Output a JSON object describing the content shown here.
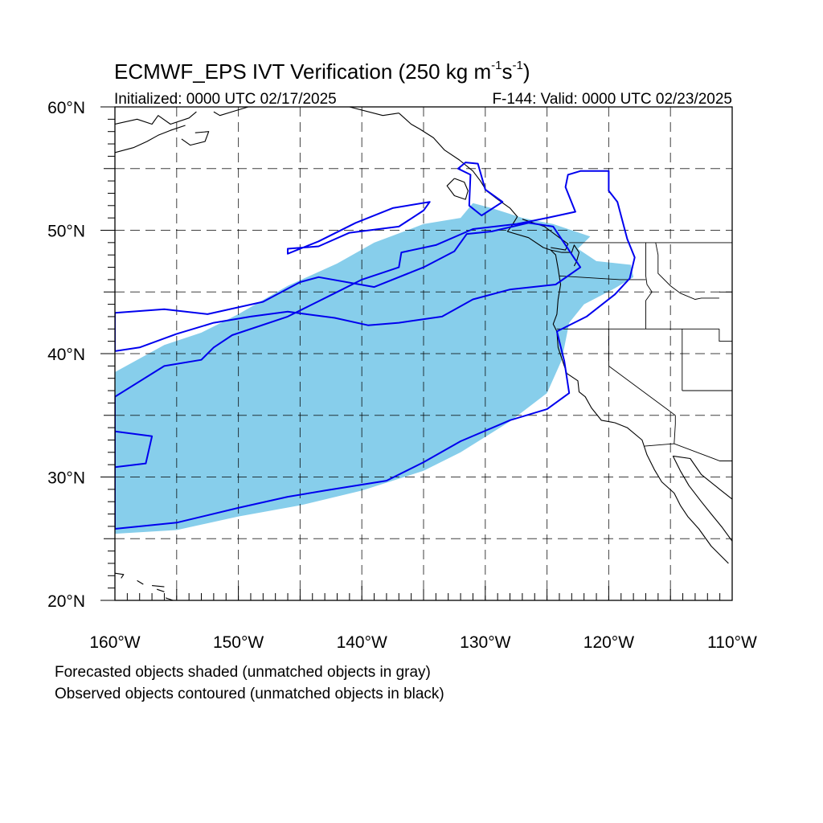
{
  "title": {
    "main": "ECMWF_EPS IVT Verification (250 kg m",
    "sup1": "-1",
    "mid": "s",
    "sup2": "-1",
    "end": ")"
  },
  "initialized": "Initialized: 0000 UTC 02/17/2025",
  "valid": "F-144: Valid: 0000 UTC 02/23/2025",
  "map": {
    "lon_range": [
      -160,
      -110
    ],
    "lat_range": [
      20,
      60
    ],
    "grid_spacing_deg": 5,
    "x_tick_labels": [
      "160°W",
      "150°W",
      "140°W",
      "130°W",
      "120°W",
      "110°W"
    ],
    "y_tick_labels": [
      "20°N",
      "30°N",
      "40°N",
      "50°N",
      "60°N"
    ],
    "colors": {
      "forecast_fill": "#87ceeb",
      "observed_contour": "#0000ee",
      "coastline": "#000000",
      "grid": "#000000"
    },
    "forecast_object": [
      [
        -160,
        25.4
      ],
      [
        -155,
        25.7
      ],
      [
        -150,
        26.8
      ],
      [
        -145,
        27.7
      ],
      [
        -140,
        28.9
      ],
      [
        -135,
        30.5
      ],
      [
        -132,
        32
      ],
      [
        -128,
        34.5
      ],
      [
        -125,
        36.8
      ],
      [
        -123.8,
        39.5
      ],
      [
        -123.2,
        42.5
      ],
      [
        -122,
        44
      ],
      [
        -119.5,
        45.3
      ],
      [
        -118,
        46.2
      ],
      [
        -118.2,
        47.2
      ],
      [
        -121,
        47.5
      ],
      [
        -122.5,
        48.5
      ],
      [
        -121.5,
        49.5
      ],
      [
        -124.5,
        50.5
      ],
      [
        -127,
        51
      ],
      [
        -129.5,
        51.8
      ],
      [
        -131,
        52.2
      ],
      [
        -132,
        51
      ],
      [
        -135,
        50.5
      ],
      [
        -139,
        49
      ],
      [
        -142,
        47.3
      ],
      [
        -146,
        45.5
      ],
      [
        -150,
        43.2
      ],
      [
        -153,
        41.7
      ],
      [
        -156,
        40.7
      ],
      [
        -160,
        38.5
      ]
    ],
    "observed_objects": [
      [
        [
          -160,
          25.8
        ],
        [
          -155,
          26.3
        ],
        [
          -150,
          27.5
        ],
        [
          -146,
          28.4
        ],
        [
          -143,
          28.9
        ],
        [
          -138,
          29.7
        ],
        [
          -135,
          31.2
        ],
        [
          -132,
          32.9
        ],
        [
          -128,
          34.6
        ],
        [
          -125,
          35.5
        ],
        [
          -123.2,
          36.8
        ],
        [
          -123.6,
          39.4
        ],
        [
          -124.2,
          41.8
        ],
        [
          -121.8,
          43
        ],
        [
          -119.5,
          44.8
        ],
        [
          -118.3,
          46.1
        ],
        [
          -117.9,
          47.8
        ],
        [
          -118.5,
          49.3
        ],
        [
          -119.3,
          52.3
        ],
        [
          -120,
          53.2
        ],
        [
          -120,
          54.8
        ],
        [
          -122.3,
          54.8
        ],
        [
          -123.3,
          54.5
        ],
        [
          -123.5,
          53.5
        ],
        [
          -122.7,
          51.5
        ],
        [
          -125,
          51
        ],
        [
          -127.5,
          50.5
        ],
        [
          -131,
          50.1
        ],
        [
          -134,
          48.8
        ],
        [
          -136.8,
          48.2
        ],
        [
          -137,
          47
        ],
        [
          -140,
          46
        ],
        [
          -142,
          45
        ],
        [
          -146,
          43
        ],
        [
          -150.5,
          41.5
        ],
        [
          -152,
          40.5
        ],
        [
          -153,
          39.5
        ],
        [
          -156,
          39
        ],
        [
          -160,
          36.5
        ]
      ],
      [
        [
          -160,
          43.3
        ],
        [
          -156,
          43.6
        ],
        [
          -152.5,
          43.2
        ],
        [
          -148,
          44.2
        ],
        [
          -145,
          45.8
        ],
        [
          -143.5,
          46.2
        ],
        [
          -139,
          45.4
        ],
        [
          -136,
          46.6
        ],
        [
          -135,
          47
        ],
        [
          -132.5,
          48.3
        ],
        [
          -131.5,
          49.7
        ],
        [
          -129.5,
          49.9
        ],
        [
          -126.5,
          50.6
        ],
        [
          -124.5,
          50.3
        ],
        [
          -122.3,
          47
        ],
        [
          -124.3,
          45.6
        ],
        [
          -128,
          45.2
        ],
        [
          -131,
          44.4
        ],
        [
          -133.5,
          43
        ],
        [
          -137,
          42.5
        ],
        [
          -139.5,
          42.3
        ],
        [
          -142.2,
          42.9
        ],
        [
          -146,
          43.4
        ],
        [
          -149,
          43
        ],
        [
          -152,
          42.5
        ],
        [
          -155,
          41.6
        ],
        [
          -158,
          40.5
        ],
        [
          -160,
          40.2
        ]
      ],
      [
        [
          -160,
          30.8
        ],
        [
          -157.5,
          31.1
        ],
        [
          -157,
          33.3
        ],
        [
          -160,
          33.7
        ]
      ],
      [
        [
          -146,
          48.5
        ],
        [
          -143.5,
          48.7
        ],
        [
          -141,
          49.8
        ],
        [
          -137,
          50.3
        ],
        [
          -135,
          51.6
        ],
        [
          -134.5,
          52.3
        ],
        [
          -137.5,
          51.8
        ],
        [
          -140.5,
          50.6
        ],
        [
          -143.5,
          49.1
        ],
        [
          -146,
          48.1
        ]
      ],
      [
        [
          -132.2,
          55
        ],
        [
          -131.6,
          55.5
        ],
        [
          -130.6,
          55.4
        ],
        [
          -130,
          53.3
        ],
        [
          -128.6,
          52.3
        ],
        [
          -130.3,
          51.2
        ],
        [
          -131.3,
          52
        ],
        [
          -131.2,
          54.5
        ]
      ]
    ],
    "coastlines": [
      [
        [
          -137,
          59.5
        ],
        [
          -136,
          58.6
        ],
        [
          -135.3,
          58.2
        ],
        [
          -134.2,
          57.5
        ],
        [
          -133.3,
          56.5
        ],
        [
          -132.1,
          55.7
        ],
        [
          -131,
          54.8
        ],
        [
          -130.4,
          54
        ],
        [
          -129.9,
          53.2
        ],
        [
          -129,
          52.5
        ],
        [
          -128,
          51.8
        ],
        [
          -127.4,
          51.1
        ],
        [
          -127.9,
          50.3
        ],
        [
          -128.2,
          49.9
        ],
        [
          -126.5,
          49.4
        ],
        [
          -125.3,
          48.6
        ],
        [
          -124.7,
          48.4
        ],
        [
          -124.3,
          48
        ],
        [
          -124.1,
          46.9
        ],
        [
          -123.9,
          45.6
        ],
        [
          -124.1,
          44.4
        ],
        [
          -124.2,
          43.2
        ],
        [
          -124.5,
          42.4
        ],
        [
          -124.2,
          41.8
        ],
        [
          -124.1,
          40.5
        ],
        [
          -123.8,
          39.6
        ],
        [
          -123.4,
          38.4
        ],
        [
          -122.5,
          37.8
        ],
        [
          -122.4,
          36.9
        ],
        [
          -121.9,
          36.5
        ],
        [
          -121.4,
          35.6
        ],
        [
          -120.6,
          34.6
        ],
        [
          -119.5,
          34.4
        ],
        [
          -118.5,
          34
        ],
        [
          -117.3,
          33
        ],
        [
          -116.9,
          31.8
        ],
        [
          -116.3,
          30.6
        ],
        [
          -115.7,
          29.6
        ],
        [
          -114.7,
          28.7
        ],
        [
          -114.2,
          27.7
        ],
        [
          -113.6,
          26.8
        ],
        [
          -112.7,
          25.8
        ],
        [
          -111.7,
          24.4
        ],
        [
          -110.3,
          23
        ]
      ],
      [
        [
          -114.8,
          31.7
        ],
        [
          -114.2,
          30.5
        ],
        [
          -113.5,
          29.3
        ],
        [
          -112.5,
          28
        ],
        [
          -111.7,
          27
        ],
        [
          -110.8,
          25.9
        ],
        [
          -110,
          24.8
        ]
      ],
      [
        [
          -110,
          28.2
        ],
        [
          -111,
          29
        ],
        [
          -112.5,
          30.2
        ],
        [
          -113.4,
          31.5
        ],
        [
          -114.8,
          31.7
        ]
      ],
      [
        [
          -160,
          58.6
        ],
        [
          -158.2,
          59
        ],
        [
          -157,
          58.6
        ],
        [
          -156.5,
          59.3
        ],
        [
          -155.5,
          58.6
        ],
        [
          -154,
          59.1
        ],
        [
          -153.4,
          59.6
        ]
      ],
      [
        [
          -160,
          56.3
        ],
        [
          -158.5,
          56.7
        ],
        [
          -157.4,
          57.2
        ],
        [
          -156.5,
          57.7
        ],
        [
          -155.5,
          58.1
        ],
        [
          -154.3,
          58.5
        ]
      ],
      [
        [
          -153.5,
          57.9
        ],
        [
          -152.4,
          58
        ],
        [
          -152.7,
          57.2
        ],
        [
          -153.9,
          56.9
        ],
        [
          -154.6,
          57.4
        ]
      ],
      [
        [
          -152,
          59.6
        ],
        [
          -151.5,
          59.3
        ],
        [
          -150.2,
          59.7
        ],
        [
          -149.2,
          60
        ]
      ],
      [
        [
          -141,
          60
        ],
        [
          -138.3,
          59.3
        ],
        [
          -137,
          59.5
        ]
      ],
      [
        [
          -132.5,
          54.2
        ],
        [
          -131.7,
          53.9
        ],
        [
          -131.4,
          53.2
        ],
        [
          -131.6,
          52.5
        ],
        [
          -132.5,
          52.8
        ],
        [
          -133.1,
          53.6
        ],
        [
          -132.5,
          54.2
        ]
      ],
      [
        [
          -124.7,
          48.4
        ],
        [
          -123.8,
          48.2
        ],
        [
          -123,
          48.2
        ],
        [
          -122.8,
          48.8
        ],
        [
          -122.4,
          48.2
        ],
        [
          -122.6,
          47.5
        ],
        [
          -122.8,
          47.1
        ]
      ],
      [
        [
          -124.7,
          48.6
        ],
        [
          -123.5,
          48.4
        ],
        [
          -123.3,
          48.9
        ],
        [
          -124,
          49.4
        ],
        [
          -125.2,
          50.3
        ],
        [
          -127,
          50.9
        ]
      ],
      [
        [
          -160,
          22.2
        ],
        [
          -159.3,
          22.1
        ],
        [
          -159.5,
          21.8
        ]
      ],
      [
        [
          -158.2,
          21.6
        ],
        [
          -157.7,
          21.3
        ]
      ],
      [
        [
          -157,
          21.2
        ],
        [
          -156,
          21.1
        ]
      ],
      [
        [
          -156.6,
          20.9
        ],
        [
          -156,
          20.7
        ]
      ],
      [
        [
          -155.9,
          20.2
        ],
        [
          -155,
          19.9
        ]
      ]
    ],
    "borders": [
      [
        [
          -123.2,
          49
        ],
        [
          -110,
          49
        ]
      ],
      [
        [
          -124.2,
          42
        ],
        [
          -117,
          42
        ],
        [
          -111.05,
          42
        ]
      ],
      [
        [
          -120,
          42
        ],
        [
          -120,
          39
        ],
        [
          -114.6,
          35
        ]
      ],
      [
        [
          -117,
          49
        ],
        [
          -117,
          46.3
        ],
        [
          -116.9,
          45.6
        ],
        [
          -116.5,
          45
        ],
        [
          -117,
          44.3
        ],
        [
          -117,
          42
        ]
      ],
      [
        [
          -124,
          46.3
        ],
        [
          -119.1,
          46
        ],
        [
          -117,
          46
        ]
      ],
      [
        [
          -114.6,
          35
        ],
        [
          -114.6,
          34.3
        ],
        [
          -114.7,
          32.7
        ]
      ],
      [
        [
          -117.1,
          32.5
        ],
        [
          -114.7,
          32.7
        ],
        [
          -111,
          31.3
        ],
        [
          -110,
          31.3
        ]
      ],
      [
        [
          -116.2,
          49
        ],
        [
          -116,
          48
        ],
        [
          -116,
          46.5
        ],
        [
          -115,
          45.5
        ],
        [
          -114.2,
          44.9
        ],
        [
          -113,
          44.4
        ],
        [
          -112.5,
          44.5
        ],
        [
          -111.05,
          44.5
        ]
      ],
      [
        [
          -111.05,
          45
        ],
        [
          -110,
          45
        ]
      ],
      [
        [
          -114.05,
          42
        ],
        [
          -114.05,
          37
        ]
      ],
      [
        [
          -114.05,
          37
        ],
        [
          -110,
          37
        ]
      ],
      [
        [
          -111.05,
          42
        ],
        [
          -111.05,
          41
        ],
        [
          -110,
          41
        ]
      ]
    ]
  },
  "footnotes": [
    "Forecasted objects shaded (unmatched objects in gray)",
    "Observed objects contoured (unmatched objects in black)"
  ]
}
